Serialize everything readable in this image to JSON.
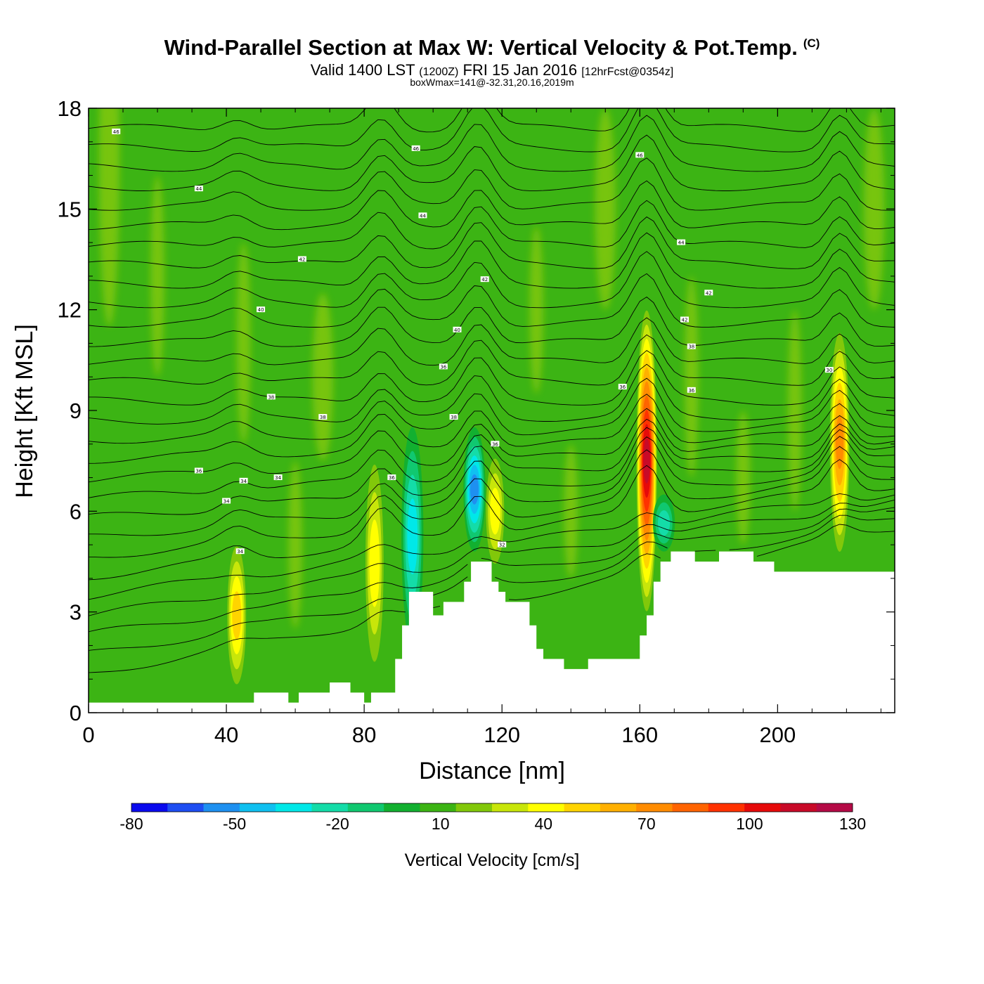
{
  "title": "Wind-Parallel Section at Max W: Vertical Velocity & Pot.Temp.",
  "copyright_mark": "(C)",
  "subtitle_valid": "Valid 1400 LST",
  "subtitle_z": "(1200Z)",
  "subtitle_date": "FRI 15 Jan 2016",
  "subtitle_fcst": "[12hrFcst@0354z]",
  "subtitle_box": "boxWmax=141@-32.31,20.16,2019m",
  "chart_data": {
    "type": "heatmap",
    "xlabel": "Distance [nm]",
    "ylabel": "Height [Kft MSL]",
    "xlim": [
      0,
      234
    ],
    "ylim": [
      0,
      18
    ],
    "x_ticks": [
      "0",
      "40",
      "80",
      "120",
      "160",
      "200"
    ],
    "x_tick_values": [
      0,
      40,
      80,
      120,
      160,
      200
    ],
    "y_ticks": [
      "0",
      "3",
      "6",
      "9",
      "12",
      "15",
      "18"
    ],
    "y_tick_values": [
      0,
      3,
      6,
      9,
      12,
      15,
      18
    ],
    "background_value_cms": 0,
    "updrafts": [
      {
        "x": 43,
        "z_bottom": 0.4,
        "z_top": 5.4,
        "max_cms": 45
      },
      {
        "x": 83,
        "z_bottom": 0.7,
        "z_top": 8.2,
        "max_cms": 40
      },
      {
        "x": 118,
        "z_bottom": 4.0,
        "z_top": 8.0,
        "max_cms": 40
      },
      {
        "x": 162,
        "z_bottom": 2.6,
        "z_top": 12.4,
        "max_cms": 110
      },
      {
        "x": 218,
        "z_bottom": 4.3,
        "z_top": 11.8,
        "max_cms": 65
      }
    ],
    "downdrafts": [
      {
        "x": 94,
        "z_bottom": 2.0,
        "z_top": 8.5,
        "min_cms": -40
      },
      {
        "x": 112,
        "z_bottom": 4.8,
        "z_top": 8.5,
        "min_cms": -60
      },
      {
        "x": 167,
        "z_bottom": 4.8,
        "z_top": 6.5,
        "min_cms": -30
      }
    ],
    "terrain_kft": [
      {
        "x": 0,
        "z": 0.3
      },
      {
        "x": 48,
        "z": 0.6
      },
      {
        "x": 58,
        "z": 0.3
      },
      {
        "x": 61,
        "z": 0.6
      },
      {
        "x": 70,
        "z": 0.9
      },
      {
        "x": 76,
        "z": 0.6
      },
      {
        "x": 80,
        "z": 0.3
      },
      {
        "x": 82,
        "z": 0.6
      },
      {
        "x": 89,
        "z": 1.6
      },
      {
        "x": 91,
        "z": 2.6
      },
      {
        "x": 93,
        "z": 3.6
      },
      {
        "x": 100,
        "z": 2.9
      },
      {
        "x": 103,
        "z": 3.3
      },
      {
        "x": 109,
        "z": 3.9
      },
      {
        "x": 111,
        "z": 4.5
      },
      {
        "x": 117,
        "z": 3.9
      },
      {
        "x": 119,
        "z": 3.6
      },
      {
        "x": 121,
        "z": 3.3
      },
      {
        "x": 128,
        "z": 2.6
      },
      {
        "x": 130,
        "z": 1.9
      },
      {
        "x": 132,
        "z": 1.6
      },
      {
        "x": 138,
        "z": 1.3
      },
      {
        "x": 145,
        "z": 1.6
      },
      {
        "x": 160,
        "z": 2.3
      },
      {
        "x": 162,
        "z": 2.9
      },
      {
        "x": 164,
        "z": 3.9
      },
      {
        "x": 166,
        "z": 4.5
      },
      {
        "x": 169,
        "z": 4.8
      },
      {
        "x": 176,
        "z": 4.5
      },
      {
        "x": 183,
        "z": 4.8
      },
      {
        "x": 193,
        "z": 4.5
      },
      {
        "x": 199,
        "z": 4.2
      },
      {
        "x": 234,
        "z": 4.2
      }
    ],
    "theta_contours": [
      {
        "value": 46,
        "z_left": 17.0
      },
      {
        "value": 44,
        "z_left": 15.6
      },
      {
        "value": 42,
        "z_left": 13.8
      },
      {
        "value": 40,
        "z_left": 11.8
      },
      {
        "value": 38,
        "z_left": 9.4
      },
      {
        "value": 36,
        "z_left": 8.0
      },
      {
        "value": 34,
        "z_left": 6.4
      },
      {
        "value": 32,
        "z_left": 4.8
      }
    ],
    "contour_labels": [
      "46",
      "46",
      "46",
      "44",
      "44",
      "44",
      "42",
      "42",
      "42",
      "42",
      "40",
      "40",
      "38",
      "38",
      "38",
      "38",
      "36",
      "36",
      "36",
      "36",
      "36",
      "36",
      "34",
      "34",
      "34",
      "34",
      "32",
      "30"
    ],
    "colorbar": {
      "title": "Vertical Velocity [cm/s]",
      "min": -80,
      "max": 130,
      "step": 10,
      "tick_labels": [
        "-80",
        "-50",
        "-20",
        "10",
        "40",
        "70",
        "100",
        "130"
      ],
      "colors": [
        "#0a0aee",
        "#1e4ef2",
        "#1e90f0",
        "#10c0f0",
        "#00e8e8",
        "#14dca8",
        "#10c870",
        "#12b030",
        "#3cb414",
        "#82c80a",
        "#c8e60a",
        "#ffff00",
        "#ffd400",
        "#ffb000",
        "#ff8c00",
        "#ff6400",
        "#ff3200",
        "#e60a0a",
        "#c80a28",
        "#b40a46"
      ]
    }
  }
}
